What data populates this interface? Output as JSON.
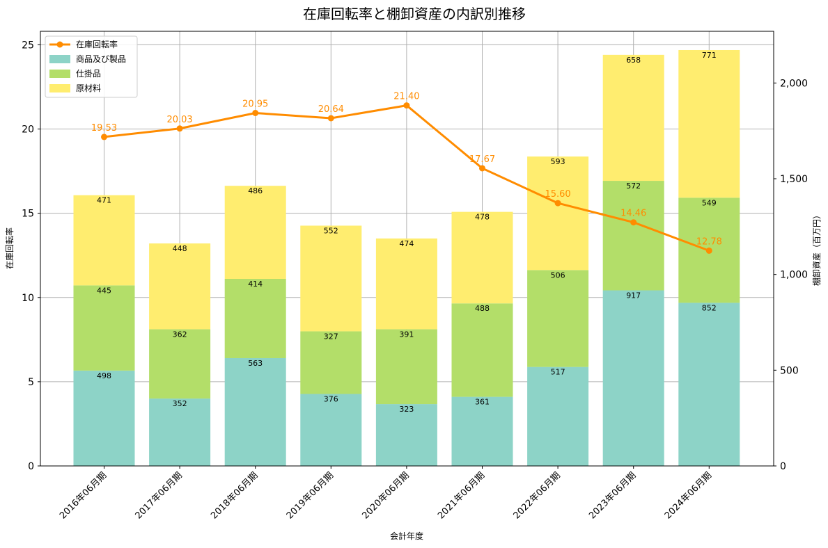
{
  "chart_data": {
    "type": "bar",
    "title": "在庫回転率と棚卸資産の内訳別推移",
    "xlabel": "会計年度",
    "ylabel_left": "在庫回転率",
    "ylabel_right": "棚卸資産（百万円）",
    "categories": [
      "2016年06月期",
      "2017年06月期",
      "2018年06月期",
      "2019年06月期",
      "2020年06月期",
      "2021年06月期",
      "2022年06月期",
      "2023年06月期",
      "2024年06月期"
    ],
    "stacked": true,
    "series": [
      {
        "name": "商品及び製品",
        "axis": "right",
        "color": "#8dd3c7",
        "values": [
          498,
          352,
          563,
          376,
          323,
          361,
          517,
          917,
          852
        ]
      },
      {
        "name": "仕掛品",
        "axis": "right",
        "color": "#b3de69",
        "values": [
          445,
          362,
          414,
          327,
          391,
          488,
          506,
          572,
          549
        ]
      },
      {
        "name": "原材料",
        "axis": "right",
        "color": "#ffed6f",
        "values": [
          471,
          448,
          486,
          552,
          474,
          478,
          593,
          658,
          771
        ]
      }
    ],
    "line": {
      "name": "在庫回転率",
      "axis": "left",
      "color": "#ff8c00",
      "values": [
        19.53,
        20.03,
        20.95,
        20.64,
        21.4,
        17.67,
        15.6,
        14.46,
        12.78
      ],
      "labels": [
        "19.53",
        "20.03",
        "20.95",
        "20.64",
        "21.40",
        "17.67",
        "15.60",
        "14.46",
        "12.78"
      ]
    },
    "ylim_left": [
      0,
      25.8
    ],
    "yticks_left": [
      0,
      5,
      10,
      15,
      20,
      25
    ],
    "ylim_right": [
      0,
      2270
    ],
    "yticks_right": [
      0,
      500,
      1000,
      1500,
      2000
    ],
    "yticklabels_right": [
      "0",
      "500",
      "1,000",
      "1,500",
      "2,000"
    ],
    "grid": true,
    "legend": "top-left"
  }
}
